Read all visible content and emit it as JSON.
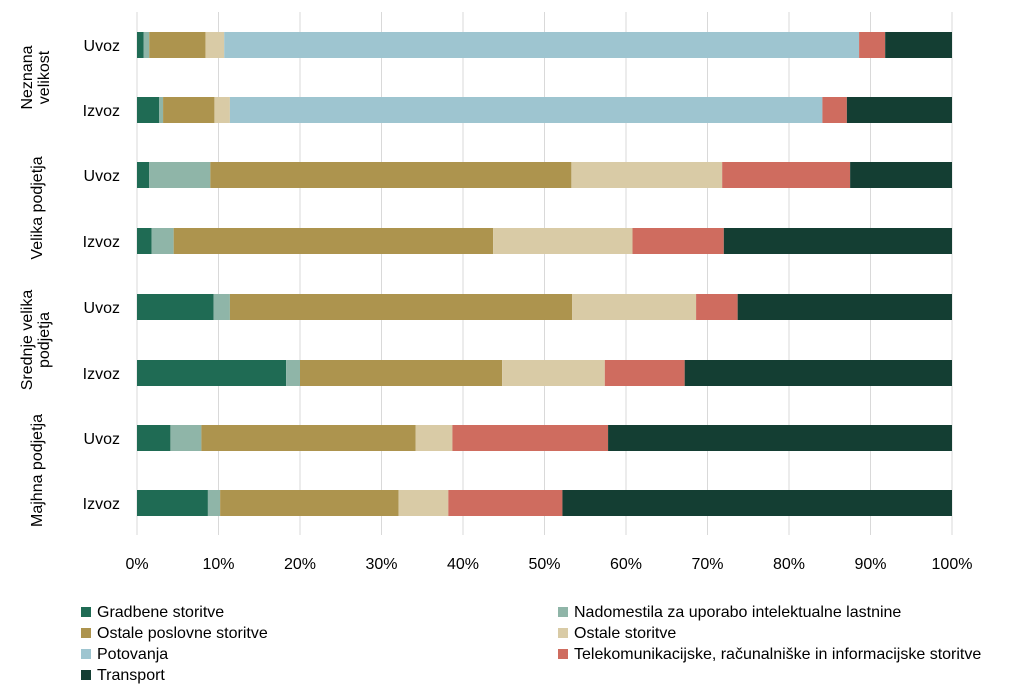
{
  "chart_data": {
    "type": "bar",
    "orientation": "horizontal",
    "stacked": "percent",
    "groups": [
      {
        "label": "Neznana velikost",
        "lines": [
          "Neznana",
          "velikost"
        ]
      },
      {
        "label": "Velika podjetja",
        "lines": [
          "Velika podjetja"
        ]
      },
      {
        "label": "Srednje velika podjetja",
        "lines": [
          "Srednje  velika",
          "podjetja"
        ]
      },
      {
        "label": "Majhna podjetja",
        "lines": [
          "Majhna podjetja"
        ]
      }
    ],
    "categories": [
      "Uvoz",
      "Izvoz",
      "Uvoz",
      "Izvoz",
      "Uvoz",
      "Izvoz",
      "Uvoz",
      "Izvoz"
    ],
    "category_group": [
      0,
      0,
      1,
      1,
      2,
      2,
      3,
      3
    ],
    "series": [
      {
        "name": "Gradbene storitve",
        "color": "#1f6b54",
        "values": [
          0.8,
          2.7,
          1.5,
          1.8,
          9.4,
          18.3,
          4.1,
          8.7
        ]
      },
      {
        "name": "Nadomestila za uporabo intelektualne lastnine",
        "color": "#8fb5a8",
        "values": [
          0.7,
          0.5,
          7.5,
          2.7,
          2.0,
          1.7,
          3.8,
          1.5
        ]
      },
      {
        "name": "Ostale poslovne storitve",
        "color": "#ad944e",
        "values": [
          6.9,
          6.3,
          44.3,
          39.2,
          42.0,
          24.8,
          26.3,
          21.9
        ]
      },
      {
        "name": "Ostale storitve",
        "color": "#d9cba6",
        "values": [
          2.3,
          1.9,
          18.5,
          17.1,
          15.2,
          12.6,
          4.5,
          6.1
        ]
      },
      {
        "name": "Potovanja",
        "color": "#9ec5d0",
        "values": [
          77.9,
          72.7,
          0,
          0,
          0,
          0,
          0,
          0
        ]
      },
      {
        "name": "Telekomunikacijske, računalniške in informacijske storitve",
        "color": "#cf6c5f",
        "values": [
          3.2,
          3.0,
          15.7,
          11.2,
          5.1,
          9.8,
          19.1,
          14.0
        ]
      },
      {
        "name": "Transport",
        "color": "#143e33",
        "values": [
          8.2,
          12.9,
          12.5,
          28.0,
          26.3,
          32.8,
          42.2,
          47.8
        ]
      }
    ],
    "x_ticks": [
      "0%",
      "10%",
      "20%",
      "30%",
      "40%",
      "50%",
      "60%",
      "70%",
      "80%",
      "90%",
      "100%"
    ],
    "xlim": [
      0,
      100
    ],
    "grid": "vertical",
    "legend_position": "bottom",
    "title": "",
    "xlabel": "",
    "ylabel": ""
  }
}
